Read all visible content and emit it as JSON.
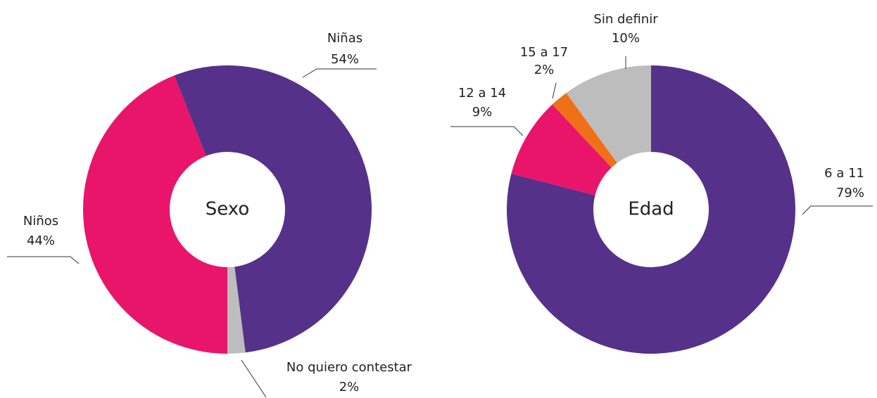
{
  "chart_data": [
    {
      "type": "pie",
      "center_label": "Sexo",
      "categories": [
        "Niñas",
        "No quiero contestar",
        "Niños"
      ],
      "values": [
        54,
        2,
        44
      ],
      "value_labels": [
        "54%",
        "2%",
        "44%"
      ],
      "colors": [
        "#55318a",
        "#bdbdbd",
        "#e8156b"
      ]
    },
    {
      "type": "pie",
      "center_label": "Edad",
      "categories": [
        "6 a 11",
        "12 a 14",
        "15 a 17",
        "Sin definir"
      ],
      "values": [
        79,
        9,
        2,
        10
      ],
      "value_labels": [
        "79%",
        "9%",
        "2%",
        "10%"
      ],
      "colors": [
        "#55318a",
        "#e8156b",
        "#f07018",
        "#bdbdbd"
      ]
    }
  ]
}
